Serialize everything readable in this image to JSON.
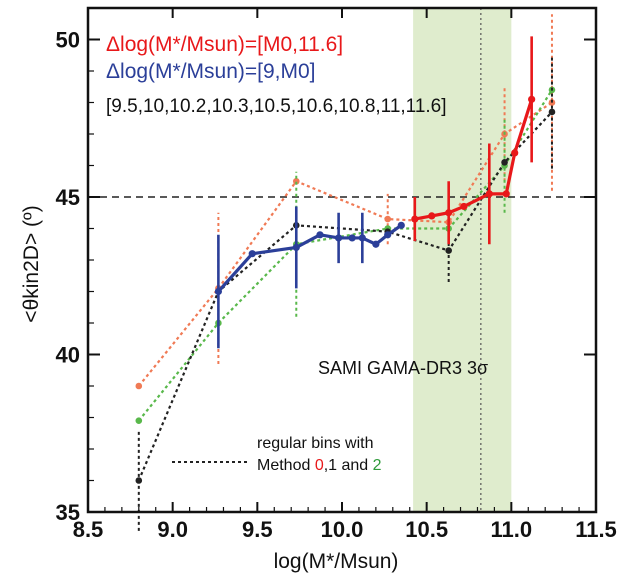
{
  "chart_data": {
    "type": "line",
    "xlabel": "log(M*/Msun)",
    "ylabel": "<θkin2D> (º)",
    "xlim": [
      8.5,
      11.5
    ],
    "ylim": [
      35,
      51
    ],
    "x_ticks": [
      8.5,
      9.0,
      9.5,
      10.0,
      10.5,
      11.0,
      11.5
    ],
    "x_tick_labels": [
      "8.5",
      "9.0",
      "9.5",
      "10.0",
      "10.5",
      "11.0",
      "11.5"
    ],
    "y_ticks": [
      35,
      40,
      45,
      50
    ],
    "y_tick_labels": [
      "35",
      "40",
      "45",
      "50"
    ],
    "reference_line_y": 45,
    "reference_line_x": 10.82,
    "shaded_x_range": [
      10.42,
      11.0
    ],
    "shade_color": "#dfeccd",
    "legend": {
      "red_label": "Δlog(M*/Msun)=[M0,11.6]",
      "blue_label": "Δlog(M*/Msun)=[9,M0]",
      "bins_text": "[9.5,10,10.2,10.3,10.5,10.6,10.8,11,11.6]",
      "regular_bins_line1": "regular bins with",
      "regular_bins_line2_prefix": "Method ",
      "method0": "0",
      "method_sep": ",1 and ",
      "method2": "2"
    },
    "sample_label": "SAMI GAMA-DR3 3σ",
    "series": [
      {
        "color": "#2b3f99",
        "style": "solid",
        "x": [
          9.27,
          9.47,
          9.73,
          9.87,
          9.98,
          10.06,
          10.12,
          10.2,
          10.27,
          10.35
        ],
        "y": [
          42.0,
          43.2,
          43.4,
          43.8,
          43.7,
          43.7,
          43.7,
          43.5,
          43.8,
          44.1
        ],
        "err": [
          1.8,
          0,
          1.3,
          0,
          0.8,
          0,
          0.8,
          0,
          0,
          0
        ]
      },
      {
        "color": "#e8181a",
        "style": "solid",
        "x": [
          10.43,
          10.53,
          10.63,
          10.72,
          10.87,
          10.97,
          11.02,
          11.12
        ],
        "y": [
          44.3,
          44.4,
          44.5,
          44.7,
          45.1,
          45.1,
          46.4,
          48.1
        ],
        "err": [
          0.7,
          0,
          1.0,
          0,
          1.6,
          0,
          0,
          2.0
        ]
      },
      {
        "color": "#f07a55",
        "style": "dotted",
        "x": [
          8.8,
          9.27,
          9.73,
          10.27,
          10.63,
          10.96,
          11.24
        ],
        "y": [
          39.0,
          42.1,
          45.5,
          44.3,
          44.2,
          47.0,
          48.0
        ],
        "err": [
          0,
          2.4,
          0,
          0.8,
          0,
          1.5,
          2.8
        ]
      },
      {
        "color": "#59b84b",
        "style": "dotted",
        "x": [
          8.8,
          9.27,
          9.73,
          10.27,
          10.63,
          10.96,
          11.24
        ],
        "y": [
          37.9,
          41.0,
          43.5,
          44.0,
          44.0,
          46.0,
          48.4
        ],
        "err": [
          0,
          0,
          2.3,
          0,
          0,
          1.5,
          0
        ]
      },
      {
        "color": "#222222",
        "style": "dotted",
        "x": [
          8.8,
          9.27,
          9.73,
          10.27,
          10.63,
          10.96,
          11.24
        ],
        "y": [
          36.0,
          42.0,
          44.1,
          43.9,
          43.3,
          46.1,
          47.7
        ],
        "err": [
          1.6,
          0,
          0.6,
          0,
          1.0,
          0,
          1.8
        ]
      }
    ]
  }
}
